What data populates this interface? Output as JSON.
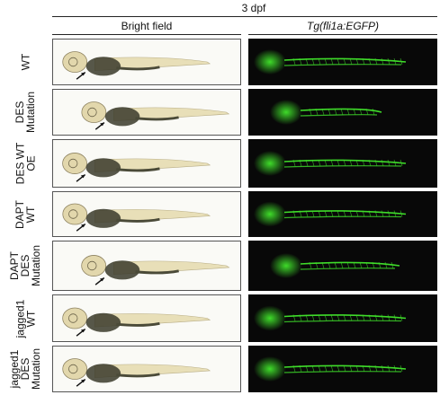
{
  "header": {
    "timepoint": "3 dpf",
    "col_bright": "Bright field",
    "col_fluor": "Tg(fli1a:EGFP)"
  },
  "rows": [
    {
      "lines": [
        "WT"
      ]
    },
    {
      "lines": [
        "DES",
        "Mutation"
      ]
    },
    {
      "lines": [
        "DES WT",
        "OE"
      ]
    },
    {
      "lines": [
        "DAPT",
        "WT"
      ]
    },
    {
      "lines": [
        "DAPT",
        "DES",
        "Mutation"
      ]
    },
    {
      "lines": [
        "jagged1",
        "WT"
      ]
    },
    {
      "lines": [
        "jagged1",
        "DES",
        "Mutation"
      ]
    }
  ],
  "colors": {
    "egfp": "#3fdc2a",
    "background_dark": "#080808",
    "yolk": "#3a3a2a",
    "embryo_body": "#e8dfb8"
  }
}
